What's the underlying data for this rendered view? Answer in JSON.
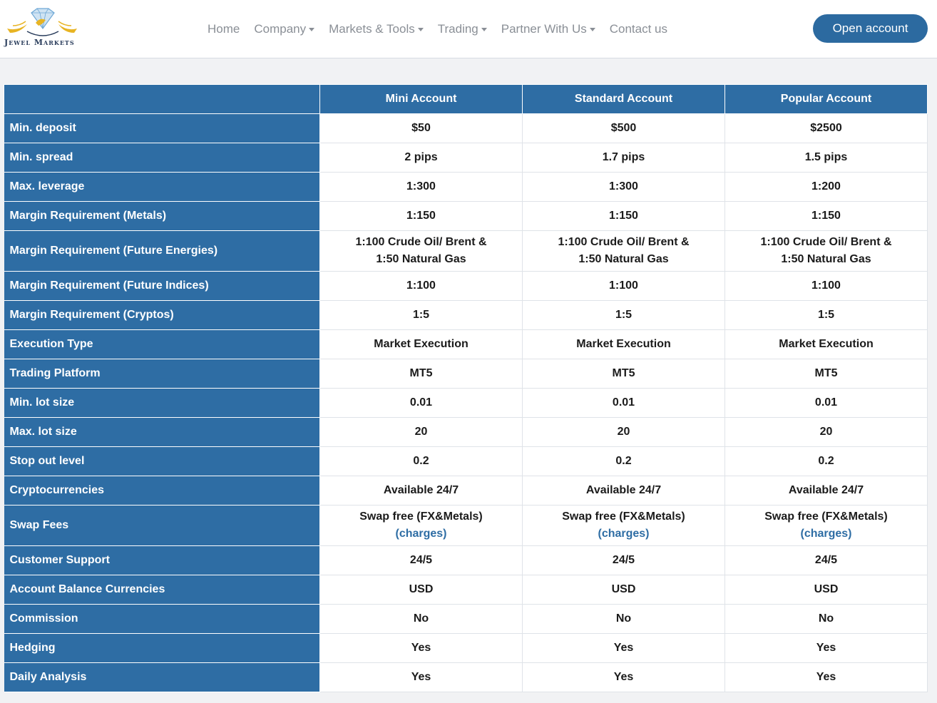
{
  "brand": {
    "name": "Jewel Markets"
  },
  "nav": {
    "items": [
      {
        "label": "Home",
        "dropdown": false
      },
      {
        "label": "Company",
        "dropdown": true
      },
      {
        "label": "Markets & Tools",
        "dropdown": true
      },
      {
        "label": "Trading",
        "dropdown": true
      },
      {
        "label": "Partner With Us",
        "dropdown": true
      },
      {
        "label": "Contact us",
        "dropdown": false
      }
    ],
    "cta": "Open account"
  },
  "colors": {
    "accent": "#2e6da4",
    "button": "#2c6aa0",
    "gold": "#e8b423"
  },
  "table": {
    "columns": [
      "Mini Account",
      "Standard Account",
      "Popular Account"
    ],
    "rows": [
      {
        "label": "Min. deposit",
        "values": [
          "$50",
          "$500",
          "$2500"
        ]
      },
      {
        "label": "Min. spread",
        "values": [
          "2 pips",
          "1.7 pips",
          "1.5 pips"
        ]
      },
      {
        "label": "Max. leverage",
        "values": [
          "1:300",
          "1:300",
          "1:200"
        ]
      },
      {
        "label": "Margin Requirement (Metals)",
        "values": [
          "1:150",
          "1:150",
          "1:150"
        ]
      },
      {
        "label": "Margin Requirement (Future Energies)",
        "values": [
          "1:100 Crude Oil/ Brent & 1:50 Natural Gas",
          "1:100 Crude Oil/ Brent & 1:50 Natural Gas",
          "1:100 Crude Oil/ Brent & 1:50 Natural Gas"
        ]
      },
      {
        "label": "Margin Requirement (Future Indices)",
        "values": [
          "1:100",
          "1:100",
          "1:100"
        ]
      },
      {
        "label": "Margin Requirement (Cryptos)",
        "values": [
          "1:5",
          "1:5",
          "1:5"
        ]
      },
      {
        "label": "Execution Type",
        "values": [
          "Market Execution",
          "Market Execution",
          "Market Execution"
        ]
      },
      {
        "label": "Trading Platform",
        "values": [
          "MT5",
          "MT5",
          "MT5"
        ]
      },
      {
        "label": "Min. lot size",
        "values": [
          "0.01",
          "0.01",
          "0.01"
        ]
      },
      {
        "label": "Max. lot size",
        "values": [
          "20",
          "20",
          "20"
        ]
      },
      {
        "label": "Stop out level",
        "values": [
          "0.2",
          "0.2",
          "0.2"
        ]
      },
      {
        "label": "Cryptocurrencies",
        "values": [
          "Available 24/7",
          "Available 24/7",
          "Available 24/7"
        ]
      },
      {
        "label": "Swap Fees",
        "values": [
          "Swap free (FX&Metals)",
          "Swap free (FX&Metals)",
          "Swap free (FX&Metals)"
        ],
        "link": "(charges)"
      },
      {
        "label": "Customer Support",
        "values": [
          "24/5",
          "24/5",
          "24/5"
        ]
      },
      {
        "label": "Account Balance Currencies",
        "values": [
          "USD",
          "USD",
          "USD"
        ]
      },
      {
        "label": "Commission",
        "values": [
          "No",
          "No",
          "No"
        ]
      },
      {
        "label": "Hedging",
        "values": [
          "Yes",
          "Yes",
          "Yes"
        ]
      },
      {
        "label": "Daily Analysis",
        "values": [
          "Yes",
          "Yes",
          "Yes"
        ]
      }
    ]
  }
}
